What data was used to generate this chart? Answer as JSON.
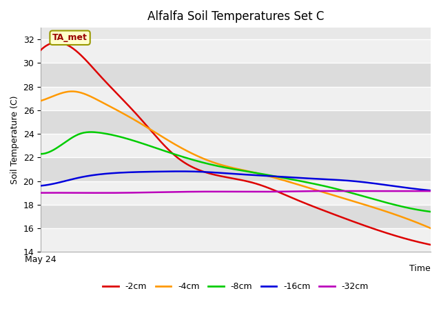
{
  "title": "Alfalfa Soil Temperatures Set C",
  "xlabel": "Time",
  "ylabel": "Soil Temperature (C)",
  "ylim": [
    14,
    33
  ],
  "yticks": [
    14,
    16,
    18,
    20,
    22,
    24,
    26,
    28,
    30,
    32
  ],
  "x_label_start": "May 24",
  "annotation_text": "TA_met",
  "plot_bg_color": "#e8e8e8",
  "fig_bg_color": "#ffffff",
  "band_color_light": "#f0f0f0",
  "band_color_dark": "#dcdcdc",
  "series": {
    "-2cm": {
      "color": "#dd0000",
      "x": [
        0,
        0.3,
        0.7,
        1.5,
        2.5,
        3.5,
        4.5,
        5.5,
        6.5,
        7.5,
        8.5,
        10
      ],
      "y": [
        31.1,
        31.7,
        31.5,
        29.0,
        25.5,
        22.0,
        20.5,
        19.8,
        18.5,
        17.2,
        16.0,
        14.6
      ]
    },
    "-4cm": {
      "color": "#ff9900",
      "x": [
        0,
        0.4,
        0.8,
        1.5,
        2.5,
        3.5,
        4.5,
        5.5,
        6.5,
        7.5,
        8.5,
        10
      ],
      "y": [
        26.8,
        27.3,
        27.6,
        26.8,
        25.0,
        23.0,
        21.5,
        20.7,
        19.8,
        18.8,
        17.8,
        16.0
      ]
    },
    "-8cm": {
      "color": "#00cc00",
      "x": [
        0,
        0.5,
        1.0,
        1.5,
        2.5,
        3.5,
        4.5,
        5.5,
        6.5,
        7.5,
        8.5,
        10
      ],
      "y": [
        22.3,
        23.0,
        24.0,
        24.1,
        23.3,
        22.2,
        21.3,
        20.7,
        20.1,
        19.4,
        18.5,
        17.4
      ]
    },
    "-16cm": {
      "color": "#0000dd",
      "x": [
        0,
        0.5,
        1.0,
        2.0,
        3.0,
        4.0,
        5.0,
        6.0,
        7.0,
        8.0,
        9.0,
        10
      ],
      "y": [
        19.6,
        19.9,
        20.3,
        20.7,
        20.8,
        20.8,
        20.6,
        20.4,
        20.2,
        20.0,
        19.6,
        19.2
      ]
    },
    "-32cm": {
      "color": "#bb00bb",
      "x": [
        0,
        1,
        2,
        3,
        4,
        5,
        6,
        7,
        8,
        9,
        10
      ],
      "y": [
        19.0,
        19.0,
        19.0,
        19.05,
        19.1,
        19.1,
        19.1,
        19.15,
        19.15,
        19.15,
        19.15
      ]
    }
  },
  "legend_labels": [
    "-2cm",
    "-4cm",
    "-8cm",
    "-16cm",
    "-32cm"
  ],
  "legend_colors": [
    "#dd0000",
    "#ff9900",
    "#00cc00",
    "#0000dd",
    "#bb00bb"
  ]
}
